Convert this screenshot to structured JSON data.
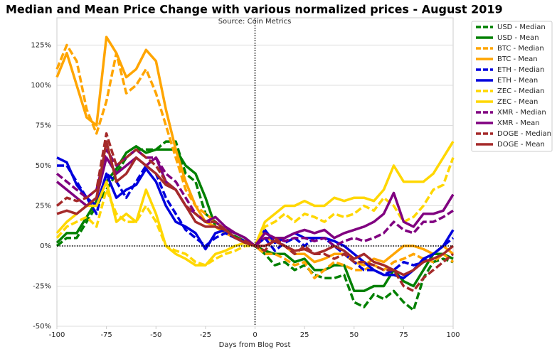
{
  "chart_data": {
    "type": "line",
    "title": "Median and Mean Price Change with various normalized prices - August 2019",
    "subtitle": "Source: Coin Metrics",
    "x_label": "Days from Blog Post",
    "legend": "outside right",
    "grid": true,
    "vlines": [
      0
    ],
    "hlines": [
      0
    ],
    "xlim": [
      -100,
      100
    ],
    "xticks": [
      -100,
      -75,
      -50,
      -25,
      0,
      25,
      50,
      75,
      100
    ],
    "ylim": [
      -50,
      142
    ],
    "yticks": [
      {
        "value": -50,
        "label": "-50%"
      },
      {
        "value": -25,
        "label": "-25%"
      },
      {
        "value": 0,
        "label": "0%"
      },
      {
        "value": 25,
        "label": "25%"
      },
      {
        "value": 50,
        "label": "50%"
      },
      {
        "value": 75,
        "label": "75%"
      },
      {
        "value": 100,
        "label": "100%"
      },
      {
        "value": 125,
        "label": "125%"
      }
    ],
    "x": [
      -100,
      -95,
      -90,
      -85,
      -80,
      -75,
      -70,
      -65,
      -60,
      -55,
      -50,
      -45,
      -40,
      -35,
      -30,
      -25,
      -20,
      -15,
      -10,
      -5,
      0,
      5,
      10,
      15,
      20,
      25,
      30,
      35,
      40,
      45,
      50,
      55,
      60,
      65,
      70,
      75,
      80,
      85,
      90,
      95,
      100
    ],
    "series": [
      {
        "name": "USD - Median",
        "color": "#008000",
        "dashed": true,
        "values": [
          0,
          5,
          5,
          15,
          25,
          35,
          45,
          55,
          60,
          60,
          60,
          65,
          65,
          45,
          40,
          20,
          15,
          10,
          8,
          5,
          0,
          -5,
          -12,
          -10,
          -15,
          -12,
          -18,
          -20,
          -20,
          -18,
          -35,
          -38,
          -30,
          -33,
          -28,
          -35,
          -40,
          -20,
          -10,
          -8,
          -10
        ]
      },
      {
        "name": "USD - Mean",
        "color": "#008000",
        "dashed": false,
        "values": [
          2,
          8,
          8,
          18,
          28,
          40,
          48,
          58,
          62,
          58,
          60,
          60,
          60,
          50,
          45,
          30,
          12,
          8,
          6,
          3,
          0,
          -3,
          -5,
          -5,
          -10,
          -8,
          -15,
          -15,
          -12,
          -12,
          -28,
          -28,
          -25,
          -25,
          -15,
          -22,
          -25,
          -15,
          -5,
          -5,
          -8
        ]
      },
      {
        "name": "BTC - Median",
        "color": "#ffa500",
        "dashed": true,
        "values": [
          110,
          125,
          115,
          85,
          70,
          90,
          120,
          95,
          100,
          110,
          95,
          75,
          55,
          35,
          25,
          20,
          15,
          10,
          5,
          3,
          0,
          -5,
          -5,
          -8,
          -12,
          -10,
          -20,
          -15,
          -10,
          -12,
          -15,
          -15,
          -12,
          -15,
          -10,
          -8,
          -5,
          -8,
          -10,
          -5,
          -10
        ]
      },
      {
        "name": "BTC - Mean",
        "color": "#ffa500",
        "dashed": false,
        "values": [
          105,
          120,
          100,
          80,
          75,
          130,
          120,
          105,
          110,
          122,
          115,
          85,
          60,
          40,
          25,
          15,
          12,
          8,
          5,
          2,
          0,
          5,
          3,
          0,
          -5,
          -5,
          -10,
          -8,
          -5,
          -5,
          -10,
          -12,
          -8,
          -10,
          -5,
          0,
          0,
          -2,
          -5,
          0,
          -5
        ]
      },
      {
        "name": "ETH - Median",
        "color": "#0000dd",
        "dashed": true,
        "values": [
          50,
          50,
          40,
          30,
          20,
          45,
          40,
          30,
          40,
          50,
          45,
          30,
          20,
          10,
          5,
          0,
          5,
          8,
          5,
          3,
          0,
          5,
          -3,
          2,
          5,
          0,
          5,
          5,
          0,
          -5,
          -10,
          -15,
          -15,
          -18,
          -15,
          -10,
          -12,
          -10,
          -5,
          0,
          5
        ]
      },
      {
        "name": "ETH - Mean",
        "color": "#0000dd",
        "dashed": false,
        "values": [
          55,
          52,
          38,
          30,
          25,
          45,
          30,
          35,
          38,
          48,
          40,
          25,
          15,
          12,
          8,
          -2,
          8,
          10,
          5,
          2,
          0,
          10,
          2,
          5,
          8,
          5,
          5,
          5,
          3,
          0,
          -5,
          -10,
          -15,
          -18,
          -18,
          -20,
          -15,
          -8,
          -5,
          0,
          10
        ]
      },
      {
        "name": "ZEC - Median",
        "color": "#ffd700",
        "dashed": true,
        "values": [
          5,
          12,
          15,
          18,
          12,
          35,
          20,
          15,
          15,
          25,
          15,
          0,
          -3,
          -5,
          -10,
          -12,
          -8,
          -5,
          -3,
          0,
          0,
          12,
          15,
          20,
          15,
          20,
          18,
          15,
          20,
          18,
          20,
          25,
          22,
          30,
          25,
          15,
          18,
          25,
          35,
          38,
          55
        ]
      },
      {
        "name": "ZEC - Mean",
        "color": "#ffd700",
        "dashed": false,
        "values": [
          8,
          15,
          20,
          25,
          25,
          40,
          15,
          20,
          15,
          35,
          20,
          0,
          -5,
          -8,
          -12,
          -12,
          -5,
          -3,
          0,
          2,
          0,
          15,
          20,
          25,
          25,
          28,
          25,
          25,
          30,
          28,
          30,
          30,
          28,
          35,
          50,
          40,
          40,
          40,
          45,
          55,
          65
        ]
      },
      {
        "name": "XMR - Median",
        "color": "#800080",
        "dashed": true,
        "values": [
          45,
          40,
          35,
          30,
          35,
          60,
          50,
          55,
          60,
          55,
          55,
          45,
          40,
          30,
          20,
          15,
          15,
          10,
          8,
          5,
          0,
          5,
          5,
          3,
          5,
          5,
          3,
          5,
          0,
          3,
          5,
          3,
          5,
          8,
          15,
          10,
          8,
          15,
          15,
          18,
          22
        ]
      },
      {
        "name": "XMR - Mean",
        "color": "#800080",
        "dashed": false,
        "values": [
          40,
          35,
          30,
          25,
          30,
          55,
          45,
          50,
          55,
          50,
          55,
          40,
          35,
          25,
          20,
          15,
          18,
          12,
          8,
          5,
          0,
          8,
          5,
          5,
          8,
          10,
          8,
          10,
          5,
          8,
          10,
          12,
          15,
          20,
          33,
          15,
          12,
          20,
          20,
          22,
          32
        ]
      },
      {
        "name": "DOGE - Median",
        "color": "#a52a2a",
        "dashed": true,
        "values": [
          25,
          30,
          28,
          30,
          35,
          70,
          50,
          55,
          60,
          55,
          50,
          40,
          35,
          25,
          20,
          15,
          15,
          10,
          5,
          3,
          0,
          -3,
          5,
          0,
          -5,
          0,
          -5,
          -5,
          -8,
          -5,
          -10,
          -10,
          -12,
          -15,
          -15,
          -25,
          -28,
          -20,
          -15,
          -10,
          -5
        ]
      },
      {
        "name": "DOGE - Mean",
        "color": "#a52a2a",
        "dashed": false,
        "values": [
          20,
          22,
          20,
          25,
          30,
          65,
          40,
          45,
          55,
          50,
          45,
          38,
          35,
          25,
          15,
          12,
          12,
          10,
          5,
          2,
          0,
          0,
          3,
          0,
          -3,
          -2,
          -5,
          -3,
          0,
          -3,
          -8,
          -5,
          -10,
          -12,
          -15,
          -18,
          -15,
          -10,
          -8,
          -5,
          0
        ]
      }
    ]
  }
}
